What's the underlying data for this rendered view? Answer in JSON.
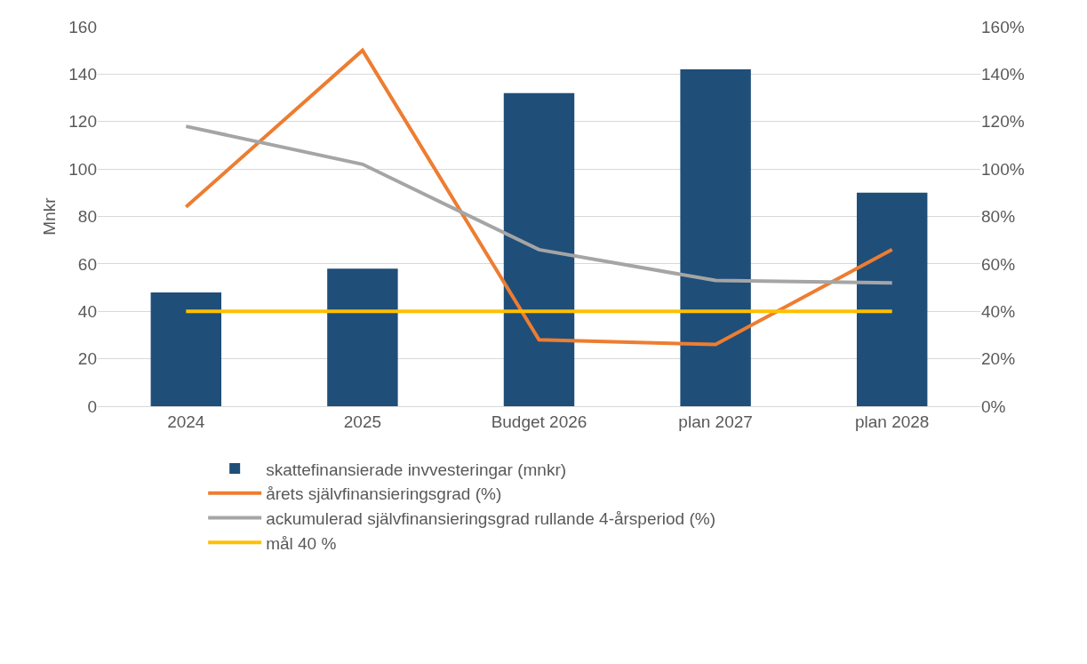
{
  "chart_data": {
    "type": "bar",
    "ylabel": "Mnkr",
    "categories": [
      "2024",
      "2025",
      "Budget 2026",
      "plan 2027",
      "plan 2028"
    ],
    "series": [
      {
        "name": "skattefinansierade invvesteringar (mnkr)",
        "color": "#1f4e79",
        "values": [
          48,
          58,
          132,
          142,
          90
        ]
      },
      {
        "name": "årets självfinansieringsgrad (%)",
        "type": "line",
        "axis": "y2",
        "color": "#ed7d31",
        "values": [
          84,
          150,
          28,
          26,
          66
        ]
      },
      {
        "name": "ackumulerad självfinansieringsgrad rullande 4-årsperiod (%)",
        "type": "line",
        "axis": "y2",
        "color": "#a5a5a5",
        "values": [
          118,
          102,
          66,
          53,
          52
        ]
      },
      {
        "name": "mål 40 %",
        "type": "line",
        "axis": "y2",
        "color": "#ffc000",
        "values": [
          40,
          40,
          40,
          40,
          40
        ]
      }
    ],
    "ylim": [
      0,
      160
    ],
    "yticks": [
      0,
      20,
      40,
      60,
      80,
      100,
      120,
      140,
      160
    ],
    "y2lim": [
      0,
      160
    ],
    "y2ticks": [
      {
        "value": 0,
        "label": "0%"
      },
      {
        "value": 20,
        "label": "20%"
      },
      {
        "value": 40,
        "label": "40%"
      },
      {
        "value": 60,
        "label": "60%"
      },
      {
        "value": 80,
        "label": "80%"
      },
      {
        "value": 100,
        "label": "100%"
      },
      {
        "value": 120,
        "label": "120%"
      },
      {
        "value": 140,
        "label": "140%"
      },
      {
        "value": 160,
        "label": "160%"
      }
    ],
    "grid": "y",
    "legend": "bottom",
    "marker": "none",
    "line_style": "solid"
  }
}
